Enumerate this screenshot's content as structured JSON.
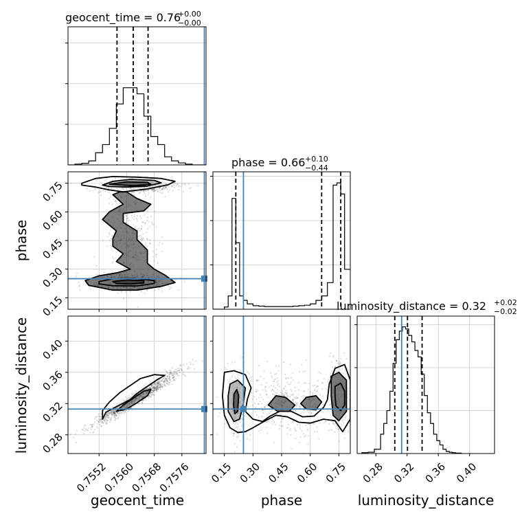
{
  "chart_data": {
    "type": "corner",
    "parameters": [
      "geocent_time",
      "phase",
      "luminosity_distance"
    ],
    "truths": {
      "geocent_time": 0.75825,
      "phase": 0.25,
      "luminosity_distance": 0.313
    },
    "truth_color": "#4682b4",
    "diagonal": [
      {
        "parameter": "geocent_time",
        "title": {
          "main": "geocent_time = 0.76",
          "sup": "+0.00",
          "sub": "−0.00"
        },
        "xlim": [
          0.7543,
          0.7583
        ],
        "quantiles": [
          0.75572,
          0.75619,
          0.75662
        ],
        "hist_edges": [
          0.7543,
          0.7545,
          0.7547,
          0.7549,
          0.7551,
          0.7553,
          0.7555,
          0.7557,
          0.7559,
          0.7561,
          0.7563,
          0.7565,
          0.7567,
          0.7569,
          0.7571,
          0.7573,
          0.7575,
          0.7577,
          0.7579,
          0.7581,
          0.7583
        ],
        "hist_counts": [
          0.0,
          0.02,
          0.04,
          0.1,
          0.3,
          0.5,
          0.9,
          1.5,
          1.9,
          1.9,
          1.75,
          1.2,
          0.7,
          0.5,
          0.2,
          0.1,
          0.05,
          0.02,
          0.0,
          0.0
        ],
        "ylim": [
          0,
          3.4
        ],
        "xticks": [],
        "yticks": [
          1,
          2,
          3
        ]
      },
      {
        "parameter": "phase",
        "title": {
          "main": "phase = 0.66",
          "sup": "+0.10",
          "sub": "−0.44"
        },
        "xlim": [
          0.09,
          0.81
        ],
        "quantiles": [
          0.21,
          0.66,
          0.76
        ],
        "hist_edges": [
          0.09,
          0.15,
          0.17,
          0.19,
          0.21,
          0.23,
          0.25,
          0.27,
          0.3,
          0.33,
          0.36,
          0.39,
          0.42,
          0.45,
          0.48,
          0.51,
          0.54,
          0.57,
          0.6,
          0.63,
          0.66,
          0.69,
          0.72,
          0.74,
          0.76,
          0.78,
          0.81
        ],
        "hist_counts": [
          0.0,
          0.05,
          0.3,
          2.5,
          1.5,
          0.3,
          0.2,
          0.12,
          0.08,
          0.07,
          0.06,
          0.06,
          0.06,
          0.06,
          0.06,
          0.07,
          0.08,
          0.09,
          0.12,
          0.2,
          0.3,
          0.6,
          2.8,
          2.85,
          2.6,
          0.9
        ],
        "ylim": [
          0,
          3.1
        ],
        "xticks": [],
        "yticks": [
          1,
          2,
          3
        ]
      },
      {
        "parameter": "luminosity_distance",
        "title": {
          "main": "luminosity_distance = 0.32",
          "sup": "+0.02",
          "sub": "−0.02"
        },
        "xlim": [
          0.256,
          0.432
        ],
        "xlabel": "luminosity_distance",
        "quantiles": [
          0.3042,
          0.3205,
          0.3392
        ],
        "hist_edges": [
          0.262,
          0.27,
          0.278,
          0.286,
          0.29,
          0.294,
          0.298,
          0.302,
          0.306,
          0.31,
          0.314,
          0.318,
          0.322,
          0.326,
          0.33,
          0.334,
          0.338,
          0.342,
          0.346,
          0.35,
          0.354,
          0.358,
          0.362,
          0.366,
          0.37,
          0.374,
          0.378,
          0.382,
          0.39
        ],
        "hist_counts": [
          0.02,
          0.03,
          0.1,
          0.45,
          0.7,
          1.0,
          1.45,
          2.1,
          2.65,
          2.85,
          2.95,
          2.9,
          2.75,
          2.6,
          2.4,
          2.25,
          1.85,
          1.35,
          0.95,
          0.7,
          0.45,
          0.3,
          0.2,
          0.1,
          0.05,
          0.03,
          0.02,
          0.01
        ],
        "ylim": [
          0,
          3.2
        ],
        "xticks": [
          0.28,
          0.32,
          0.36,
          0.4
        ],
        "xtick_labels": [
          "0.28",
          "0.32",
          "0.36",
          "0.40"
        ],
        "yticks": [
          1,
          2,
          3
        ]
      }
    ],
    "offdiag": [
      {
        "x_param": "geocent_time",
        "y_param": "phase",
        "xlim": [
          0.7543,
          0.7583
        ],
        "ylim": [
          0.09,
          0.81
        ],
        "yticks": [
          0.15,
          0.3,
          0.45,
          0.6,
          0.75
        ],
        "ytick_labels": [
          "0.15",
          "0.30",
          "0.45",
          "0.60",
          "0.75"
        ],
        "ylabel": "phase",
        "blobs": [
          {
            "cx": 0.7563,
            "cy": 0.738,
            "sx": 0.00055,
            "sy": 0.018,
            "n": 700
          },
          {
            "cx": 0.7561,
            "cy": 0.232,
            "sx": 0.00055,
            "sy": 0.02,
            "n": 700
          },
          {
            "cx": 0.7561,
            "cy": 0.48,
            "sx": 0.00035,
            "sy": 0.12,
            "n": 320
          }
        ],
        "contours": [
          [
            [
              0.7547,
              0.75
            ],
            [
              0.7551,
              0.775
            ],
            [
              0.7556,
              0.785
            ],
            [
              0.7563,
              0.782
            ],
            [
              0.757,
              0.775
            ],
            [
              0.7574,
              0.76
            ],
            [
              0.7572,
              0.742
            ],
            [
              0.7566,
              0.72
            ],
            [
              0.7559,
              0.705
            ],
            [
              0.7555,
              0.715
            ],
            [
              0.7551,
              0.73
            ],
            [
              0.7547,
              0.74
            ]
          ],
          [
            [
              0.7553,
              0.74
            ],
            [
              0.7556,
              0.76
            ],
            [
              0.7561,
              0.77
            ],
            [
              0.7568,
              0.765
            ],
            [
              0.757,
              0.752
            ],
            [
              0.7566,
              0.735
            ],
            [
              0.756,
              0.73
            ],
            [
              0.7555,
              0.733
            ]
          ],
          [
            [
              0.7555,
              0.745
            ],
            [
              0.756,
              0.757
            ],
            [
              0.7566,
              0.755
            ],
            [
              0.7567,
              0.745
            ],
            [
              0.7562,
              0.737
            ]
          ],
          [
            [
              0.756,
              0.705
            ],
            [
              0.7563,
              0.67
            ],
            [
              0.7567,
              0.64
            ],
            [
              0.7565,
              0.605
            ],
            [
              0.7559,
              0.592
            ],
            [
              0.7559,
              0.545
            ],
            [
              0.7563,
              0.5
            ],
            [
              0.7563,
              0.455
            ],
            [
              0.7566,
              0.4
            ],
            [
              0.7566,
              0.33
            ],
            [
              0.7568,
              0.3
            ],
            [
              0.7571,
              0.27
            ],
            [
              0.7574,
              0.23
            ],
            [
              0.757,
              0.21
            ],
            [
              0.7563,
              0.19
            ],
            [
              0.7556,
              0.19
            ],
            [
              0.7549,
              0.215
            ],
            [
              0.7548,
              0.24
            ],
            [
              0.7552,
              0.265
            ],
            [
              0.7557,
              0.28
            ],
            [
              0.7561,
              0.3
            ],
            [
              0.7557,
              0.34
            ],
            [
              0.7559,
              0.38
            ],
            [
              0.7556,
              0.42
            ],
            [
              0.7556,
              0.46
            ],
            [
              0.7557,
              0.5
            ],
            [
              0.7553,
              0.56
            ],
            [
              0.7555,
              0.6
            ],
            [
              0.7559,
              0.64
            ],
            [
              0.7556,
              0.69
            ],
            [
              0.7558,
              0.705
            ]
          ],
          [
            [
              0.7552,
              0.235
            ],
            [
              0.7556,
              0.25
            ],
            [
              0.7562,
              0.252
            ],
            [
              0.7568,
              0.24
            ],
            [
              0.7568,
              0.225
            ],
            [
              0.7563,
              0.212
            ],
            [
              0.7556,
              0.213
            ],
            [
              0.7552,
              0.223
            ]
          ],
          [
            [
              0.7556,
              0.235
            ],
            [
              0.756,
              0.243
            ],
            [
              0.7565,
              0.24
            ],
            [
              0.7565,
              0.228
            ],
            [
              0.7561,
              0.222
            ],
            [
              0.7557,
              0.225
            ]
          ]
        ]
      },
      {
        "x_param": "geocent_time",
        "y_param": "luminosity_distance",
        "xlim": [
          0.7543,
          0.7583
        ],
        "ylim": [
          0.256,
          0.432
        ],
        "xticks": [
          0.7552,
          0.756,
          0.7568,
          0.7576
        ],
        "xtick_labels": [
          "0.7552",
          "0.7560",
          "0.7568",
          "0.7576"
        ],
        "yticks": [
          0.28,
          0.32,
          0.36,
          0.4
        ],
        "ytick_labels": [
          "0.28",
          "0.32",
          "0.36",
          "0.40"
        ],
        "xlabel": "geocent_time",
        "ylabel": "luminosity_distance",
        "blobs": [
          {
            "cx": 0.7563,
            "cy": 0.3275,
            "sx": 0.00063,
            "sy": 0.0175,
            "n": 1200,
            "corr": 0.97
          }
        ],
        "contours": [
          [
            [
              0.7553,
              0.3
            ],
            [
              0.7554,
              0.309
            ],
            [
              0.7557,
              0.316
            ],
            [
              0.7561,
              0.325
            ],
            [
              0.7563,
              0.333
            ],
            [
              0.7566,
              0.342
            ],
            [
              0.7569,
              0.351
            ],
            [
              0.7571,
              0.356
            ],
            [
              0.7568,
              0.357
            ],
            [
              0.7564,
              0.352
            ],
            [
              0.7561,
              0.343
            ],
            [
              0.7558,
              0.334
            ],
            [
              0.7555,
              0.322
            ],
            [
              0.7553,
              0.311
            ]
          ],
          [
            [
              0.7557,
              0.31
            ],
            [
              0.7559,
              0.318
            ],
            [
              0.7562,
              0.327
            ],
            [
              0.7565,
              0.336
            ],
            [
              0.7567,
              0.338
            ],
            [
              0.7566,
              0.33
            ],
            [
              0.7563,
              0.321
            ],
            [
              0.756,
              0.313
            ]
          ]
        ]
      },
      {
        "x_param": "phase",
        "y_param": "luminosity_distance",
        "xlim": [
          0.09,
          0.81
        ],
        "ylim": [
          0.256,
          0.432
        ],
        "xticks": [
          0.15,
          0.3,
          0.45,
          0.6,
          0.75
        ],
        "xtick_labels": [
          "0.15",
          "0.30",
          "0.45",
          "0.60",
          "0.75"
        ],
        "xlabel": "phase",
        "blobs": [
          {
            "cx": 0.21,
            "cy": 0.321,
            "sx": 0.02,
            "sy": 0.019,
            "n": 600
          },
          {
            "cx": 0.75,
            "cy": 0.327,
            "sx": 0.025,
            "sy": 0.02,
            "n": 700
          },
          {
            "cx": 0.47,
            "cy": 0.32,
            "sx": 0.16,
            "sy": 0.022,
            "n": 520
          }
        ],
        "contours": [
          [
            [
              0.15,
              0.36
            ],
            [
              0.2,
              0.362
            ],
            [
              0.26,
              0.357
            ],
            [
              0.29,
              0.34
            ],
            [
              0.27,
              0.325
            ],
            [
              0.26,
              0.31
            ],
            [
              0.3,
              0.3
            ],
            [
              0.35,
              0.297
            ],
            [
              0.39,
              0.304
            ],
            [
              0.44,
              0.31
            ],
            [
              0.5,
              0.31
            ],
            [
              0.56,
              0.303
            ],
            [
              0.62,
              0.304
            ],
            [
              0.67,
              0.315
            ],
            [
              0.69,
              0.325
            ],
            [
              0.7,
              0.345
            ],
            [
              0.73,
              0.365
            ],
            [
              0.78,
              0.37
            ],
            [
              0.81,
              0.35
            ],
            [
              0.81,
              0.3
            ],
            [
              0.77,
              0.284
            ],
            [
              0.73,
              0.298
            ],
            [
              0.67,
              0.3
            ],
            [
              0.6,
              0.295
            ],
            [
              0.54,
              0.296
            ],
            [
              0.48,
              0.303
            ],
            [
              0.42,
              0.305
            ],
            [
              0.35,
              0.296
            ],
            [
              0.3,
              0.289
            ],
            [
              0.26,
              0.284
            ],
            [
              0.22,
              0.283
            ],
            [
              0.18,
              0.289
            ],
            [
              0.15,
              0.305
            ],
            [
              0.14,
              0.33
            ]
          ],
          [
            [
              0.18,
              0.345
            ],
            [
              0.22,
              0.35
            ],
            [
              0.26,
              0.34
            ],
            [
              0.25,
              0.32
            ],
            [
              0.23,
              0.3
            ],
            [
              0.2,
              0.297
            ],
            [
              0.17,
              0.31
            ],
            [
              0.17,
              0.33
            ]
          ],
          [
            [
              0.2,
              0.332
            ],
            [
              0.215,
              0.338
            ],
            [
              0.225,
              0.33
            ],
            [
              0.22,
              0.31
            ],
            [
              0.205,
              0.307
            ],
            [
              0.198,
              0.318
            ]
          ],
          [
            [
              0.71,
              0.355
            ],
            [
              0.75,
              0.36
            ],
            [
              0.79,
              0.35
            ],
            [
              0.79,
              0.31
            ],
            [
              0.75,
              0.298
            ],
            [
              0.72,
              0.305
            ],
            [
              0.71,
              0.33
            ]
          ],
          [
            [
              0.73,
              0.342
            ],
            [
              0.76,
              0.346
            ],
            [
              0.78,
              0.336
            ],
            [
              0.78,
              0.318
            ],
            [
              0.76,
              0.311
            ],
            [
              0.735,
              0.317
            ],
            [
              0.73,
              0.33
            ]
          ],
          [
            [
              0.38,
              0.318
            ],
            [
              0.42,
              0.33
            ],
            [
              0.47,
              0.328
            ],
            [
              0.52,
              0.318
            ],
            [
              0.49,
              0.31
            ],
            [
              0.43,
              0.31
            ]
          ],
          [
            [
              0.55,
              0.32
            ],
            [
              0.58,
              0.328
            ],
            [
              0.63,
              0.33
            ],
            [
              0.66,
              0.322
            ],
            [
              0.63,
              0.312
            ],
            [
              0.58,
              0.313
            ]
          ]
        ]
      }
    ]
  }
}
